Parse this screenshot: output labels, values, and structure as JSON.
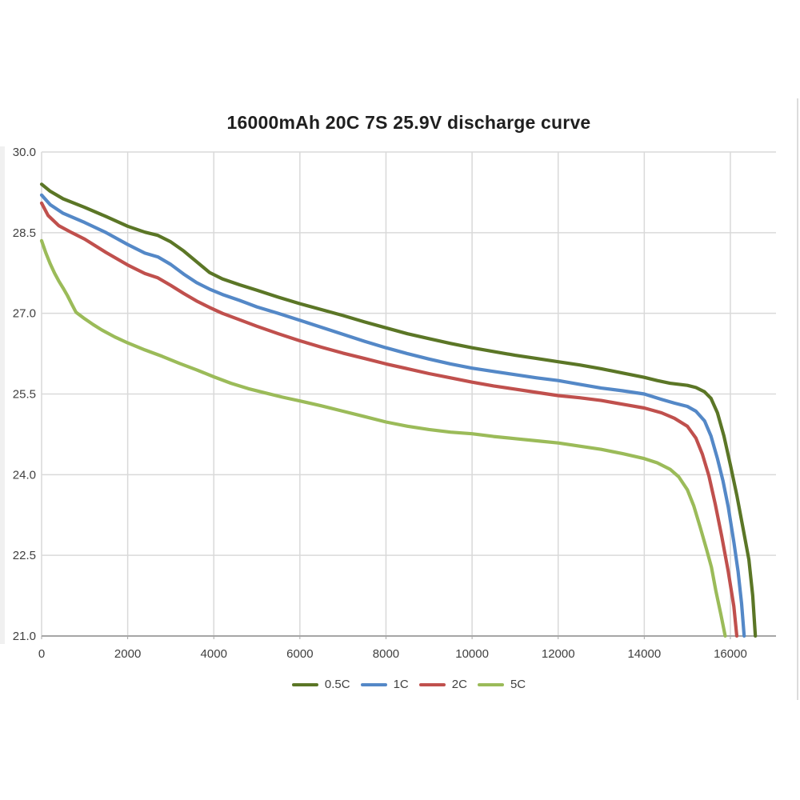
{
  "title": "16000mAh 20C 7S 25.9V discharge curve",
  "colors": {
    "background": "#ffffff",
    "grid": "#d9d9d9",
    "axis": "#a6a6a6",
    "tick_text": "#404040",
    "title_text": "#1f1f1f"
  },
  "chart_data": {
    "type": "line",
    "title": "16000mAh 20C 7S 25.9V discharge curve",
    "xlabel": "",
    "ylabel": "",
    "xlim": [
      0,
      17060
    ],
    "ylim": [
      21.0,
      30.0
    ],
    "grid": true,
    "legend_position": "bottom",
    "x_ticks": [
      0,
      2000,
      4000,
      6000,
      8000,
      10000,
      12000,
      14000,
      16000
    ],
    "x_tick_labels": [
      "0",
      "2000",
      "4000",
      "6000",
      "8000",
      "10000",
      "12000",
      "14000",
      "16000"
    ],
    "y_ticks": [
      30.0,
      28.5,
      27.0,
      25.5,
      24.0,
      22.5,
      21.0
    ],
    "y_tick_labels": [
      "30.0",
      "28.5",
      "27.0",
      "25.5",
      "24.0",
      "22.5",
      "21.0"
    ],
    "x_unit": "mAh",
    "y_unit": "V",
    "series": [
      {
        "name": "0.5C",
        "color": "#5b7626",
        "points": [
          [
            0,
            29.4
          ],
          [
            200,
            29.27
          ],
          [
            500,
            29.13
          ],
          [
            1000,
            28.97
          ],
          [
            1500,
            28.8
          ],
          [
            2000,
            28.62
          ],
          [
            2400,
            28.51
          ],
          [
            2700,
            28.45
          ],
          [
            3000,
            28.33
          ],
          [
            3300,
            28.16
          ],
          [
            3600,
            27.96
          ],
          [
            3900,
            27.76
          ],
          [
            4200,
            27.64
          ],
          [
            4600,
            27.53
          ],
          [
            5000,
            27.43
          ],
          [
            5500,
            27.3
          ],
          [
            6000,
            27.18
          ],
          [
            6500,
            27.07
          ],
          [
            7000,
            26.96
          ],
          [
            7500,
            26.84
          ],
          [
            8000,
            26.73
          ],
          [
            8500,
            26.62
          ],
          [
            9000,
            26.53
          ],
          [
            9500,
            26.44
          ],
          [
            10000,
            26.36
          ],
          [
            10500,
            26.29
          ],
          [
            11000,
            26.22
          ],
          [
            11500,
            26.16
          ],
          [
            12000,
            26.1
          ],
          [
            12500,
            26.04
          ],
          [
            13000,
            25.97
          ],
          [
            13500,
            25.89
          ],
          [
            14000,
            25.81
          ],
          [
            14300,
            25.75
          ],
          [
            14600,
            25.7
          ],
          [
            15000,
            25.66
          ],
          [
            15200,
            25.62
          ],
          [
            15400,
            25.54
          ],
          [
            15550,
            25.42
          ],
          [
            15700,
            25.15
          ],
          [
            15850,
            24.72
          ],
          [
            16000,
            24.18
          ],
          [
            16150,
            23.62
          ],
          [
            16300,
            22.98
          ],
          [
            16430,
            22.42
          ],
          [
            16520,
            21.75
          ],
          [
            16580,
            21.0
          ]
        ]
      },
      {
        "name": "1C",
        "color": "#5488c7",
        "points": [
          [
            0,
            29.2
          ],
          [
            200,
            29.02
          ],
          [
            500,
            28.86
          ],
          [
            1000,
            28.69
          ],
          [
            1500,
            28.5
          ],
          [
            2000,
            28.28
          ],
          [
            2400,
            28.12
          ],
          [
            2700,
            28.05
          ],
          [
            3000,
            27.91
          ],
          [
            3300,
            27.73
          ],
          [
            3600,
            27.57
          ],
          [
            3900,
            27.45
          ],
          [
            4200,
            27.35
          ],
          [
            4600,
            27.24
          ],
          [
            5000,
            27.12
          ],
          [
            5500,
            27.0
          ],
          [
            6000,
            26.87
          ],
          [
            6500,
            26.74
          ],
          [
            7000,
            26.61
          ],
          [
            7500,
            26.48
          ],
          [
            8000,
            26.36
          ],
          [
            8500,
            26.25
          ],
          [
            9000,
            26.15
          ],
          [
            9500,
            26.06
          ],
          [
            10000,
            25.98
          ],
          [
            10500,
            25.92
          ],
          [
            11000,
            25.86
          ],
          [
            11500,
            25.8
          ],
          [
            12000,
            25.75
          ],
          [
            12500,
            25.68
          ],
          [
            13000,
            25.61
          ],
          [
            13500,
            25.56
          ],
          [
            14000,
            25.5
          ],
          [
            14400,
            25.4
          ],
          [
            14700,
            25.33
          ],
          [
            15000,
            25.27
          ],
          [
            15200,
            25.18
          ],
          [
            15400,
            25.0
          ],
          [
            15550,
            24.72
          ],
          [
            15700,
            24.3
          ],
          [
            15830,
            23.88
          ],
          [
            15950,
            23.4
          ],
          [
            16080,
            22.75
          ],
          [
            16180,
            22.2
          ],
          [
            16260,
            21.6
          ],
          [
            16320,
            21.0
          ]
        ]
      },
      {
        "name": "2C",
        "color": "#c0504d",
        "points": [
          [
            0,
            29.05
          ],
          [
            150,
            28.82
          ],
          [
            400,
            28.63
          ],
          [
            700,
            28.5
          ],
          [
            1000,
            28.38
          ],
          [
            1500,
            28.13
          ],
          [
            2000,
            27.9
          ],
          [
            2400,
            27.74
          ],
          [
            2700,
            27.66
          ],
          [
            3000,
            27.52
          ],
          [
            3300,
            27.37
          ],
          [
            3600,
            27.23
          ],
          [
            3900,
            27.11
          ],
          [
            4200,
            27.0
          ],
          [
            4600,
            26.88
          ],
          [
            5000,
            26.76
          ],
          [
            5500,
            26.62
          ],
          [
            6000,
            26.49
          ],
          [
            6500,
            26.37
          ],
          [
            7000,
            26.26
          ],
          [
            7500,
            26.16
          ],
          [
            8000,
            26.06
          ],
          [
            8500,
            25.97
          ],
          [
            9000,
            25.88
          ],
          [
            9500,
            25.8
          ],
          [
            10000,
            25.72
          ],
          [
            10500,
            25.65
          ],
          [
            11000,
            25.59
          ],
          [
            11500,
            25.53
          ],
          [
            12000,
            25.47
          ],
          [
            12500,
            25.43
          ],
          [
            13000,
            25.38
          ],
          [
            13500,
            25.31
          ],
          [
            14000,
            25.24
          ],
          [
            14400,
            25.15
          ],
          [
            14700,
            25.05
          ],
          [
            15000,
            24.9
          ],
          [
            15200,
            24.68
          ],
          [
            15350,
            24.38
          ],
          [
            15500,
            23.98
          ],
          [
            15650,
            23.45
          ],
          [
            15800,
            22.85
          ],
          [
            15950,
            22.2
          ],
          [
            16080,
            21.55
          ],
          [
            16150,
            21.0
          ]
        ]
      },
      {
        "name": "5C",
        "color": "#9bbb59",
        "points": [
          [
            0,
            28.35
          ],
          [
            100,
            28.12
          ],
          [
            200,
            27.92
          ],
          [
            300,
            27.75
          ],
          [
            400,
            27.6
          ],
          [
            500,
            27.47
          ],
          [
            600,
            27.33
          ],
          [
            700,
            27.17
          ],
          [
            800,
            27.02
          ],
          [
            1000,
            26.9
          ],
          [
            1200,
            26.79
          ],
          [
            1400,
            26.69
          ],
          [
            1700,
            26.56
          ],
          [
            2000,
            26.45
          ],
          [
            2400,
            26.32
          ],
          [
            2800,
            26.2
          ],
          [
            3200,
            26.07
          ],
          [
            3600,
            25.95
          ],
          [
            4000,
            25.82
          ],
          [
            4400,
            25.7
          ],
          [
            4800,
            25.6
          ],
          [
            5200,
            25.52
          ],
          [
            5600,
            25.44
          ],
          [
            6000,
            25.37
          ],
          [
            6500,
            25.28
          ],
          [
            7000,
            25.18
          ],
          [
            7500,
            25.08
          ],
          [
            8000,
            24.98
          ],
          [
            8500,
            24.9
          ],
          [
            9000,
            24.84
          ],
          [
            9500,
            24.79
          ],
          [
            10000,
            24.76
          ],
          [
            10500,
            24.71
          ],
          [
            11000,
            24.67
          ],
          [
            11500,
            24.63
          ],
          [
            12000,
            24.59
          ],
          [
            12500,
            24.53
          ],
          [
            13000,
            24.47
          ],
          [
            13500,
            24.39
          ],
          [
            14000,
            24.3
          ],
          [
            14300,
            24.22
          ],
          [
            14600,
            24.1
          ],
          [
            14800,
            23.96
          ],
          [
            15000,
            23.72
          ],
          [
            15150,
            23.42
          ],
          [
            15300,
            23.02
          ],
          [
            15450,
            22.6
          ],
          [
            15560,
            22.28
          ],
          [
            15660,
            21.85
          ],
          [
            15780,
            21.4
          ],
          [
            15880,
            21.0
          ]
        ]
      }
    ]
  }
}
